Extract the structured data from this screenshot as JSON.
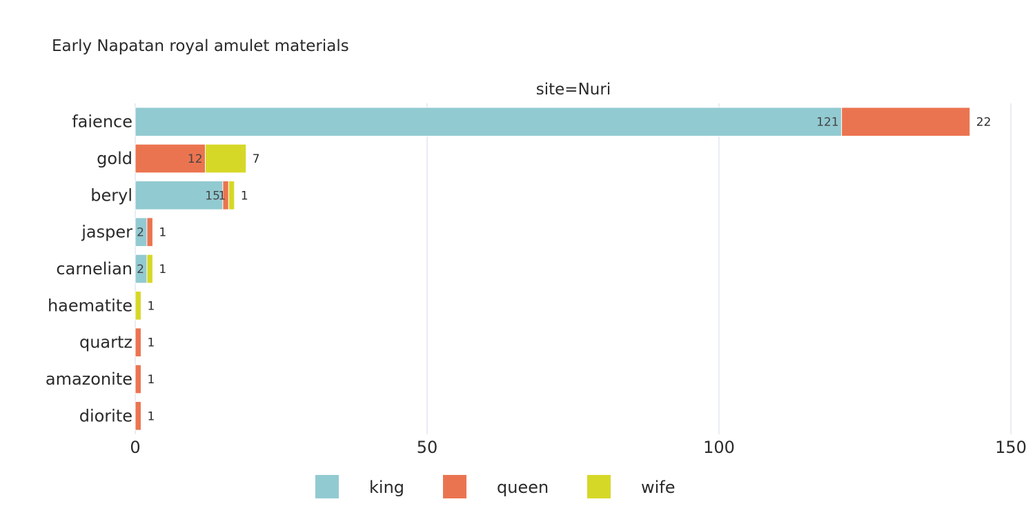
{
  "chart_data": {
    "type": "bar",
    "orientation": "horizontal",
    "barmode": "stack",
    "title": "Early Napatan royal amulet materials",
    "facet_label": "site=Nuri",
    "categories": [
      "faience",
      "gold",
      "beryl",
      "jasper",
      "carnelian",
      "haematite",
      "quartz",
      "amazonite",
      "diorite"
    ],
    "series": [
      {
        "name": "king",
        "color": "#92cad1",
        "values": [
          121,
          0,
          15,
          2,
          2,
          0,
          0,
          0,
          0
        ]
      },
      {
        "name": "queen",
        "color": "#eb7450",
        "values": [
          22,
          12,
          1,
          1,
          0,
          0,
          1,
          1,
          1
        ]
      },
      {
        "name": "wife",
        "color": "#d6d827",
        "values": [
          0,
          7,
          1,
          0,
          1,
          1,
          0,
          0,
          0
        ]
      }
    ],
    "xlim": [
      0,
      150
    ],
    "xticks": [
      0,
      50,
      100,
      150
    ],
    "xlabel": "",
    "ylabel": "",
    "grid": true,
    "legend": "bottom"
  }
}
